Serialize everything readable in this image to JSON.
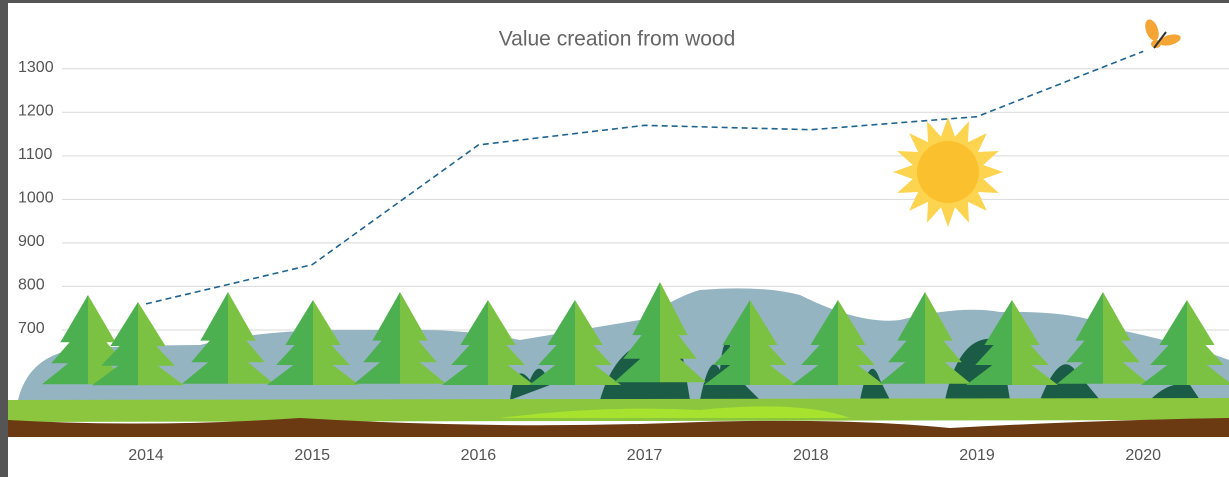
{
  "chart_data": {
    "type": "line",
    "title": "Value creation from wood",
    "categories": [
      "2014",
      "2015",
      "2016",
      "2017",
      "2018",
      "2019",
      "2020"
    ],
    "values": [
      760,
      850,
      1125,
      1170,
      1160,
      1190,
      1340
    ],
    "color": "#1f6391",
    "ylim": [
      600,
      1350
    ],
    "yticks": [
      700,
      800,
      900,
      1000,
      1100,
      1200,
      1300
    ],
    "grid": true
  }
}
